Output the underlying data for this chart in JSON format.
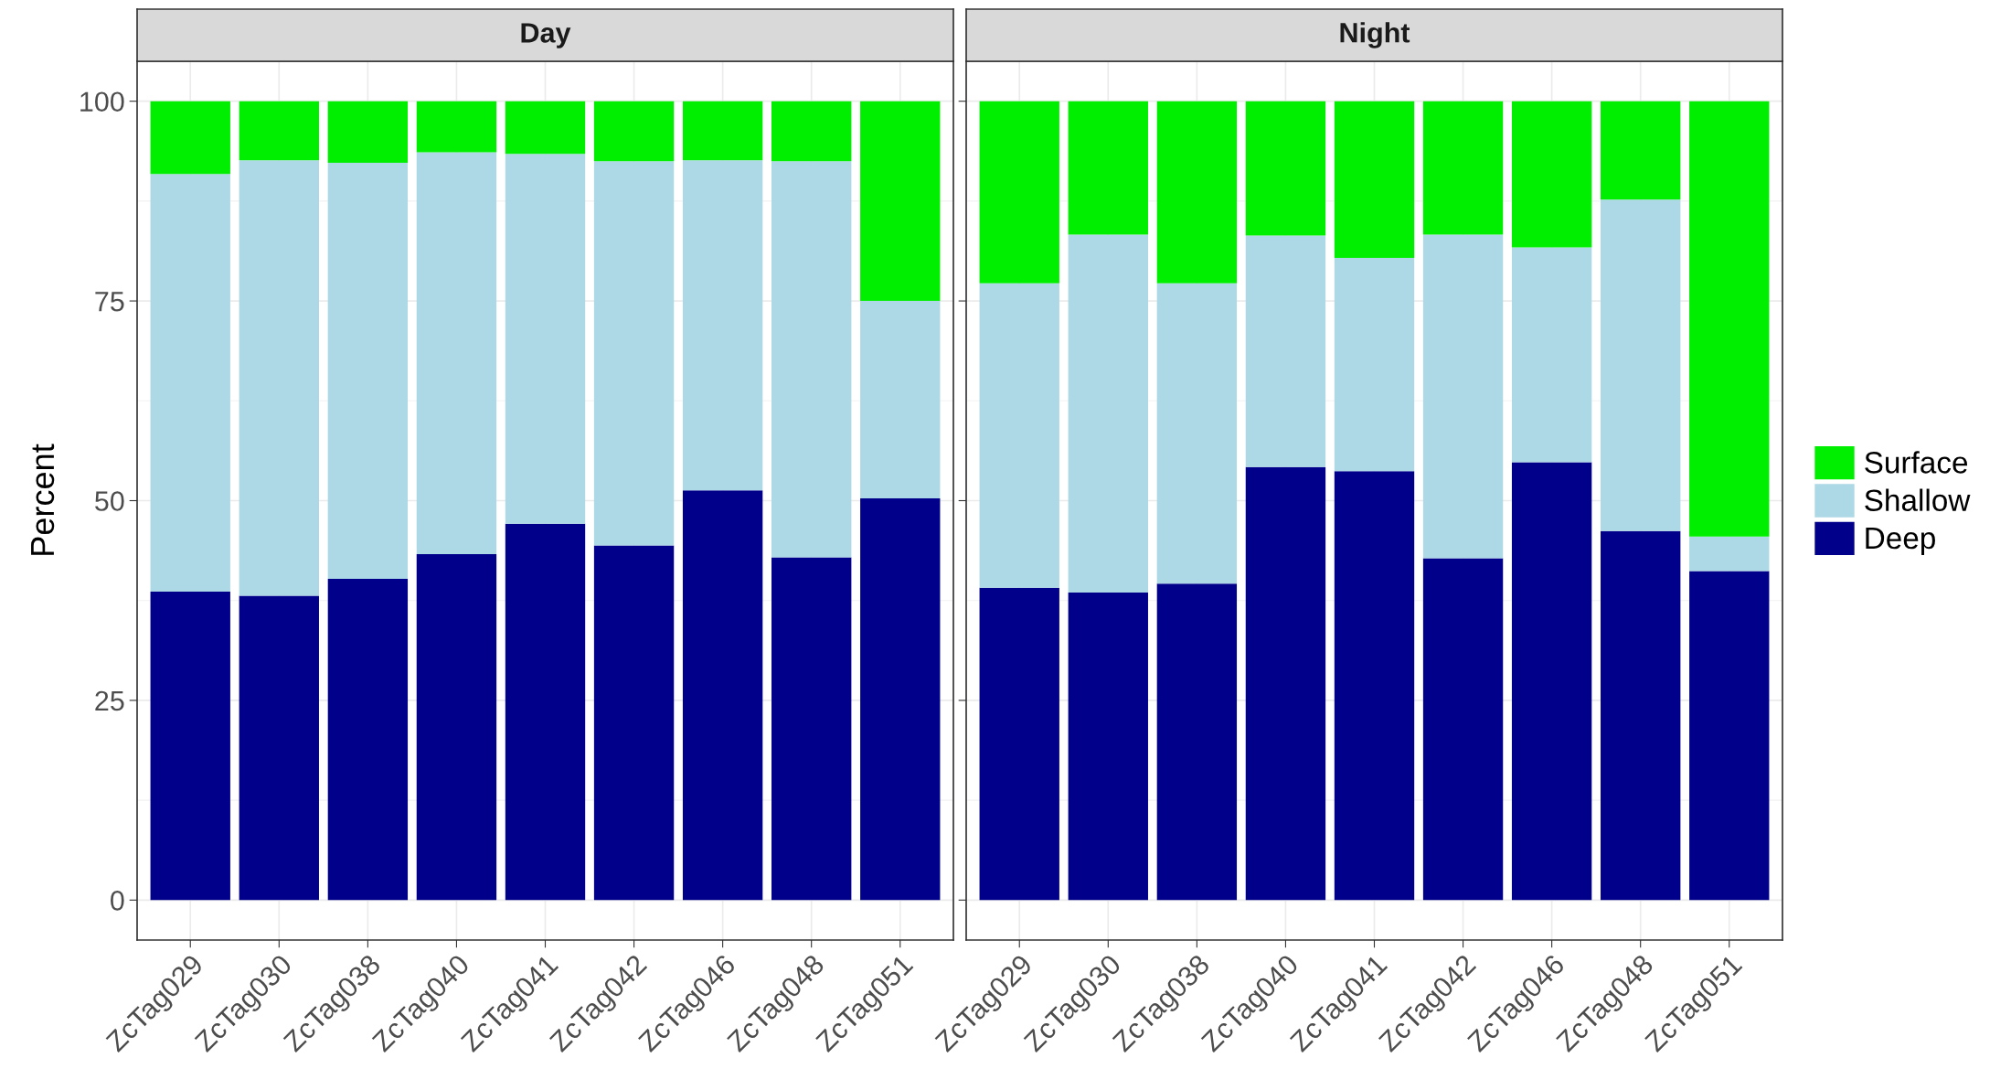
{
  "chart_data": [
    {
      "type": "bar",
      "title": "Day",
      "ylabel": "Percent",
      "stacked": true,
      "grid": true,
      "legend": "right",
      "categories": [
        "ZcTag029",
        "ZcTag030",
        "ZcTag038",
        "ZcTag040",
        "ZcTag041",
        "ZcTag042",
        "ZcTag046",
        "ZcTag048",
        "ZcTag051"
      ],
      "ylim": [
        -5,
        105
      ],
      "yticks": [
        0,
        25,
        50,
        75,
        100
      ],
      "series": [
        {
          "name": "Deep",
          "color": "#00008b",
          "values": [
            38.6,
            38.1,
            40.2,
            43.3,
            47.1,
            44.4,
            51.3,
            42.9,
            50.3
          ]
        },
        {
          "name": "Shallow",
          "color": "#add8e6",
          "values": [
            52.3,
            54.5,
            52.1,
            50.3,
            46.3,
            48.1,
            41.3,
            49.6,
            24.7
          ]
        },
        {
          "name": "Surface",
          "color": "#00ee00",
          "values": [
            9.1,
            7.4,
            7.7,
            6.4,
            6.6,
            7.5,
            7.4,
            7.5,
            25.0
          ]
        }
      ]
    },
    {
      "type": "bar",
      "title": "Night",
      "stacked": true,
      "grid": true,
      "tick_labels": "x",
      "categories": [
        "ZcTag029",
        "ZcTag030",
        "ZcTag038",
        "ZcTag040",
        "ZcTag041",
        "ZcTag042",
        "ZcTag046",
        "ZcTag048",
        "ZcTag051"
      ],
      "ylim": [
        -5,
        105
      ],
      "yticks": [
        0,
        25,
        50,
        75,
        100
      ],
      "series": [
        {
          "color": "#00008b",
          "values": [
            39.1,
            38.5,
            39.6,
            54.2,
            53.7,
            42.8,
            54.8,
            46.2,
            41.2
          ]
        },
        {
          "color": "#add8e6",
          "values": [
            38.1,
            44.8,
            37.6,
            29.0,
            26.7,
            40.5,
            26.9,
            41.5,
            4.3
          ]
        },
        {
          "color": "#00ee00",
          "values": [
            22.8,
            16.7,
            22.8,
            16.8,
            19.6,
            16.7,
            18.3,
            12.3,
            54.5
          ]
        }
      ]
    }
  ]
}
